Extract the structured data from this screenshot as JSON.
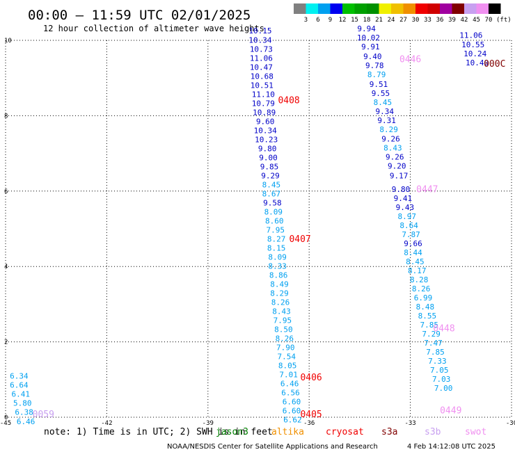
{
  "header": {
    "title": "00:00 – 11:59 UTC 02/01/2025",
    "subtitle": "12 hour collection of altimeter wave heights"
  },
  "colorbar": {
    "unit": "(ft)",
    "ticks": [
      "3",
      "6",
      "9",
      "12",
      "15",
      "18",
      "21",
      "24",
      "27",
      "30",
      "33",
      "36",
      "39",
      "42",
      "45",
      "70"
    ],
    "colors": [
      "#808080",
      "#00f0f0",
      "#00a0f0",
      "#0000f0",
      "#00c000",
      "#00a000",
      "#009000",
      "#f0f000",
      "#f0c000",
      "#f09000",
      "#f00000",
      "#d00000",
      "#a000a0",
      "#800000",
      "#c8a0f0",
      "#f090f0",
      "#000000"
    ]
  },
  "footer": {
    "note_prefix": "note: 1) Time is in UTC; 2) SWH is in feet",
    "credit": "NOAA/NESDIS Center for Satellite Applications and Research",
    "timestamp": "4 Feb 14:12:08 UTC 2025",
    "satellites": [
      {
        "name": "jason3",
        "color": "#008000"
      },
      {
        "name": "altika",
        "color": "#f09000"
      },
      {
        "name": "cryosat",
        "color": "#f00000"
      },
      {
        "name": "s3a",
        "color": "#800000"
      },
      {
        "name": "s3b",
        "color": "#c8a0f0"
      },
      {
        "name": "swot",
        "color": "#f090f0"
      }
    ]
  },
  "chart_data": {
    "type": "scatter",
    "title": "00:00 – 11:59 UTC 02/01/2025",
    "xlim": [
      -45,
      -30
    ],
    "ylim": [
      0,
      10
    ],
    "xticks": [
      -45,
      -42,
      -39,
      -36,
      -33,
      -30
    ],
    "yticks": [
      0,
      2,
      4,
      6,
      8,
      10
    ],
    "grid": true,
    "x_tick_labels": [
      "-45",
      "-42",
      "-39",
      "-36",
      "-33",
      "-30"
    ],
    "y_tick_labels": [
      "0",
      "2",
      "4",
      "6",
      "8",
      "10"
    ],
    "time_labels": [
      {
        "text": "0059",
        "x": -43.88,
        "y": 0.0,
        "color": "#c8a0f0"
      },
      {
        "text": "0405",
        "x": -35.94,
        "y": 0.0,
        "color": "#f00000"
      },
      {
        "text": "0406",
        "x": -35.94,
        "y": 0.98,
        "color": "#f00000"
      },
      {
        "text": "0407",
        "x": -36.27,
        "y": 4.65,
        "color": "#f00000"
      },
      {
        "text": "0408",
        "x": -36.6,
        "y": 8.33,
        "color": "#f00000"
      },
      {
        "text": "0446",
        "x": -33.0,
        "y": 9.42,
        "color": "#f090f0"
      },
      {
        "text": "0447",
        "x": -32.5,
        "y": 5.97,
        "color": "#f090f0"
      },
      {
        "text": "0448",
        "x": -32.0,
        "y": 2.28,
        "color": "#f090f0"
      },
      {
        "text": "0449",
        "x": -31.8,
        "y": 0.1,
        "color": "#f090f0"
      },
      {
        "text": "000C",
        "x": -30.5,
        "y": 9.3,
        "color": "#800000"
      }
    ],
    "series": [
      {
        "name": "0059",
        "points": [
          {
            "x": -44.6,
            "y": 1.02,
            "v": "6.34"
          },
          {
            "x": -44.6,
            "y": 0.78,
            "v": "6.64"
          },
          {
            "x": -44.55,
            "y": 0.54,
            "v": "6.41"
          },
          {
            "x": -44.5,
            "y": 0.3,
            "v": "5.80"
          },
          {
            "x": -44.45,
            "y": 0.06,
            "v": "6.38"
          },
          {
            "x": -44.4,
            "y": -0.18,
            "v": "6.46"
          }
        ]
      },
      {
        "name": "0405-0408",
        "points": [
          {
            "x": -37.45,
            "y": 10.18,
            "v": "10.15"
          },
          {
            "x": -37.45,
            "y": 9.94,
            "v": "10.34"
          },
          {
            "x": -37.42,
            "y": 9.7,
            "v": "10.73"
          },
          {
            "x": -37.42,
            "y": 9.46,
            "v": "11.06"
          },
          {
            "x": -37.42,
            "y": 9.22,
            "v": "10.47"
          },
          {
            "x": -37.4,
            "y": 8.98,
            "v": "10.68"
          },
          {
            "x": -37.4,
            "y": 8.74,
            "v": "10.51"
          },
          {
            "x": -37.36,
            "y": 8.5,
            "v": "11.10"
          },
          {
            "x": -37.36,
            "y": 8.26,
            "v": "10.79"
          },
          {
            "x": -37.33,
            "y": 8.02,
            "v": "10.89"
          },
          {
            "x": -37.3,
            "y": 7.78,
            "v": "9.60"
          },
          {
            "x": -37.3,
            "y": 7.54,
            "v": "10.34"
          },
          {
            "x": -37.27,
            "y": 7.3,
            "v": "10.23"
          },
          {
            "x": -37.24,
            "y": 7.06,
            "v": "9.80"
          },
          {
            "x": -37.21,
            "y": 6.82,
            "v": "9.00"
          },
          {
            "x": -37.18,
            "y": 6.58,
            "v": "9.85"
          },
          {
            "x": -37.15,
            "y": 6.34,
            "v": "9.29"
          },
          {
            "x": -37.12,
            "y": 6.1,
            "v": "8.45"
          },
          {
            "x": -37.12,
            "y": 5.86,
            "v": "8.67"
          },
          {
            "x": -37.09,
            "y": 5.62,
            "v": "9.58"
          },
          {
            "x": -37.06,
            "y": 5.38,
            "v": "8.09"
          },
          {
            "x": -37.03,
            "y": 5.14,
            "v": "8.60"
          },
          {
            "x": -37.0,
            "y": 4.9,
            "v": "7.95"
          },
          {
            "x": -36.97,
            "y": 4.66,
            "v": "8.27"
          },
          {
            "x": -36.97,
            "y": 4.42,
            "v": "8.15"
          },
          {
            "x": -36.94,
            "y": 4.18,
            "v": "8.09"
          },
          {
            "x": -36.94,
            "y": 3.94,
            "v": "8.33"
          },
          {
            "x": -36.91,
            "y": 3.7,
            "v": "8.86"
          },
          {
            "x": -36.88,
            "y": 3.46,
            "v": "8.49"
          },
          {
            "x": -36.88,
            "y": 3.22,
            "v": "8.29"
          },
          {
            "x": -36.85,
            "y": 2.98,
            "v": "8.26"
          },
          {
            "x": -36.82,
            "y": 2.74,
            "v": "8.43"
          },
          {
            "x": -36.79,
            "y": 2.5,
            "v": "7.95"
          },
          {
            "x": -36.76,
            "y": 2.26,
            "v": "8.50"
          },
          {
            "x": -36.73,
            "y": 2.02,
            "v": "8.26"
          },
          {
            "x": -36.7,
            "y": 1.78,
            "v": "7.90"
          },
          {
            "x": -36.67,
            "y": 1.54,
            "v": "7.54"
          },
          {
            "x": -36.64,
            "y": 1.3,
            "v": "8.05"
          },
          {
            "x": -36.61,
            "y": 1.06,
            "v": "7.01"
          },
          {
            "x": -36.58,
            "y": 0.82,
            "v": "6.46"
          },
          {
            "x": -36.55,
            "y": 0.58,
            "v": "6.56"
          },
          {
            "x": -36.52,
            "y": 0.34,
            "v": "6.60"
          },
          {
            "x": -36.52,
            "y": 0.1,
            "v": "6.60"
          },
          {
            "x": -36.49,
            "y": -0.14,
            "v": "6.62"
          }
        ]
      },
      {
        "name": "0446-0449",
        "points": [
          {
            "x": -34.3,
            "y": 10.24,
            "v": "9.94"
          },
          {
            "x": -34.24,
            "y": 10.0,
            "v": "10.02"
          },
          {
            "x": -34.18,
            "y": 9.76,
            "v": "9.91"
          },
          {
            "x": -34.12,
            "y": 9.5,
            "v": "9.40"
          },
          {
            "x": -34.06,
            "y": 9.26,
            "v": "9.78"
          },
          {
            "x": -34.0,
            "y": 9.02,
            "v": "8.79"
          },
          {
            "x": -33.94,
            "y": 8.76,
            "v": "9.51"
          },
          {
            "x": -33.88,
            "y": 8.52,
            "v": "9.55"
          },
          {
            "x": -33.82,
            "y": 8.28,
            "v": "8.45"
          },
          {
            "x": -33.76,
            "y": 8.04,
            "v": "9.34"
          },
          {
            "x": -33.7,
            "y": 7.8,
            "v": "9.31"
          },
          {
            "x": -33.64,
            "y": 7.56,
            "v": "8.29"
          },
          {
            "x": -33.58,
            "y": 7.32,
            "v": "9.26"
          },
          {
            "x": -33.52,
            "y": 7.08,
            "v": "8.43"
          },
          {
            "x": -33.46,
            "y": 6.84,
            "v": "9.26"
          },
          {
            "x": -33.4,
            "y": 6.6,
            "v": "9.20"
          },
          {
            "x": -33.34,
            "y": 6.34,
            "v": "9.17"
          },
          {
            "x": -33.28,
            "y": 5.98,
            "v": "9.80"
          },
          {
            "x": -33.22,
            "y": 5.74,
            "v": "9.41"
          },
          {
            "x": -33.16,
            "y": 5.5,
            "v": "9.43"
          },
          {
            "x": -33.1,
            "y": 5.26,
            "v": "8.97"
          },
          {
            "x": -33.04,
            "y": 5.02,
            "v": "8.64"
          },
          {
            "x": -32.98,
            "y": 4.78,
            "v": "7.87"
          },
          {
            "x": -32.92,
            "y": 4.54,
            "v": "9.66"
          },
          {
            "x": -32.92,
            "y": 4.3,
            "v": "8.44"
          },
          {
            "x": -32.86,
            "y": 4.06,
            "v": "8.45"
          },
          {
            "x": -32.8,
            "y": 3.82,
            "v": "8.17"
          },
          {
            "x": -32.74,
            "y": 3.58,
            "v": "8.28"
          },
          {
            "x": -32.68,
            "y": 3.34,
            "v": "8.26"
          },
          {
            "x": -32.62,
            "y": 3.1,
            "v": "6.99"
          },
          {
            "x": -32.56,
            "y": 2.86,
            "v": "8.48"
          },
          {
            "x": -32.5,
            "y": 2.62,
            "v": "8.55"
          },
          {
            "x": -32.44,
            "y": 2.38,
            "v": "7.85"
          },
          {
            "x": -32.38,
            "y": 2.14,
            "v": "7.29"
          },
          {
            "x": -32.32,
            "y": 1.9,
            "v": "7.47"
          },
          {
            "x": -32.26,
            "y": 1.66,
            "v": "7.85"
          },
          {
            "x": -32.2,
            "y": 1.42,
            "v": "7.33"
          },
          {
            "x": -32.14,
            "y": 1.18,
            "v": "7.05"
          },
          {
            "x": -32.08,
            "y": 0.94,
            "v": "7.03"
          },
          {
            "x": -32.02,
            "y": 0.7,
            "v": "7.00"
          }
        ]
      },
      {
        "name": "000C",
        "points": [
          {
            "x": -31.2,
            "y": 10.06,
            "v": "11.06"
          },
          {
            "x": -31.14,
            "y": 9.82,
            "v": "10.55"
          },
          {
            "x": -31.08,
            "y": 9.58,
            "v": "10.24"
          },
          {
            "x": -31.02,
            "y": 9.34,
            "v": "10.40"
          }
        ]
      }
    ]
  }
}
